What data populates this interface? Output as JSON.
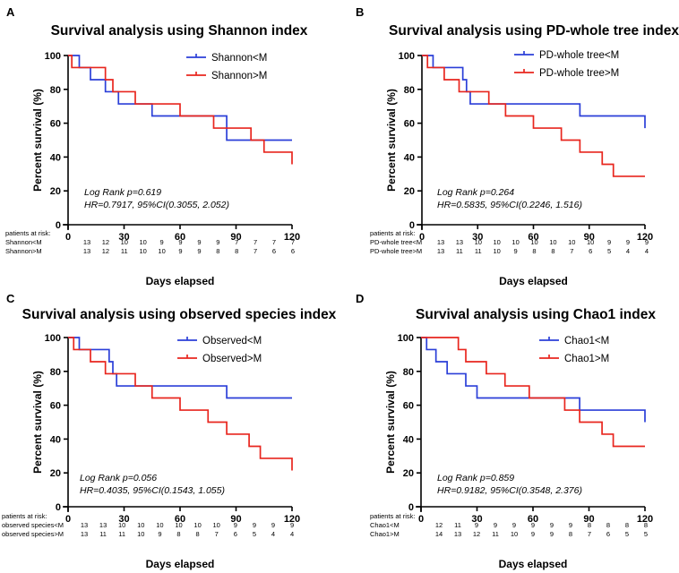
{
  "chart_data": [
    {
      "letter": "A",
      "type": "line",
      "subtype": "kaplan-meier-step",
      "title": "Survival analysis using Shannon index",
      "xlabel": "Days elapsed",
      "ylabel": "Percent survival (%)",
      "xlim": [
        0,
        120
      ],
      "ylim": [
        0,
        100
      ],
      "xticks": [
        "0",
        "30",
        "60",
        "90",
        "120"
      ],
      "yticks": [
        "0",
        "20",
        "40",
        "60",
        "80",
        "100"
      ],
      "legend_position": "top-right",
      "series": [
        {
          "name": "Shannon<M",
          "color": "#2b3fd8",
          "steps": [
            [
              0,
              100
            ],
            [
              6,
              92.9
            ],
            [
              12,
              85.7
            ],
            [
              20,
              78.6
            ],
            [
              27,
              71.4
            ],
            [
              45,
              64.3
            ],
            [
              85,
              50
            ],
            [
              120,
              50
            ]
          ]
        },
        {
          "name": "Shannon>M",
          "color": "#e8261e",
          "steps": [
            [
              0,
              100
            ],
            [
              2,
              92.9
            ],
            [
              20,
              85.7
            ],
            [
              24,
              78.6
            ],
            [
              36,
              71.4
            ],
            [
              60,
              64.3
            ],
            [
              78,
              57.1
            ],
            [
              90,
              57.1
            ],
            [
              98,
              50
            ],
            [
              105,
              42.9
            ],
            [
              120,
              35.7
            ]
          ]
        }
      ],
      "stats": {
        "logrank": "Log Rank p=0.619",
        "hr": "HR=0.7917, 95%CI(0.3055, 2.052)"
      },
      "risk_table": {
        "heading": "patients at risk:",
        "rows": [
          {
            "label": "Shannon<M",
            "counts": [
              "13",
              "12",
              "10",
              "10",
              "9",
              "9",
              "9",
              "9",
              "7",
              "7",
              "7",
              "7"
            ]
          },
          {
            "label": "Shannon>M",
            "counts": [
              "13",
              "12",
              "11",
              "10",
              "10",
              "9",
              "9",
              "8",
              "8",
              "7",
              "6",
              "6"
            ]
          }
        ]
      }
    },
    {
      "letter": "B",
      "type": "line",
      "subtype": "kaplan-meier-step",
      "title": "Survival analysis using PD-whole tree index",
      "xlabel": "Days elapsed",
      "ylabel": "Percent survival (%)",
      "xlim": [
        0,
        120
      ],
      "ylim": [
        0,
        100
      ],
      "xticks": [
        "0",
        "30",
        "60",
        "90",
        "120"
      ],
      "yticks": [
        "0",
        "20",
        "40",
        "60",
        "80",
        "100"
      ],
      "legend_position": "top-right",
      "series": [
        {
          "name": "PD-whole tree<M",
          "color": "#2b3fd8",
          "steps": [
            [
              0,
              100
            ],
            [
              6,
              92.9
            ],
            [
              22,
              85.7
            ],
            [
              24,
              78.6
            ],
            [
              26,
              71.4
            ],
            [
              85,
              64.3
            ],
            [
              119,
              64.3
            ],
            [
              120,
              57.1
            ]
          ]
        },
        {
          "name": "PD-whole tree>M",
          "color": "#e8261e",
          "steps": [
            [
              0,
              100
            ],
            [
              3,
              92.9
            ],
            [
              12,
              85.7
            ],
            [
              20,
              78.6
            ],
            [
              36,
              71.4
            ],
            [
              45,
              64.3
            ],
            [
              60,
              57.1
            ],
            [
              75,
              50
            ],
            [
              85,
              42.9
            ],
            [
              97,
              35.7
            ],
            [
              103,
              28.6
            ],
            [
              120,
              28.6
            ]
          ]
        }
      ],
      "stats": {
        "logrank": "Log Rank p=0.264",
        "hr": "HR=0.5835, 95%CI(0.2246, 1.516)"
      },
      "risk_table": {
        "heading": "patients at risk:",
        "rows": [
          {
            "label": "PD-whole tree<M",
            "counts": [
              "13",
              "13",
              "10",
              "10",
              "10",
              "10",
              "10",
              "10",
              "10",
              "9",
              "9",
              "9"
            ]
          },
          {
            "label": "PD-whole tree>M",
            "counts": [
              "13",
              "11",
              "11",
              "10",
              "9",
              "8",
              "8",
              "7",
              "6",
              "5",
              "4",
              "4"
            ]
          }
        ]
      }
    },
    {
      "letter": "C",
      "type": "line",
      "subtype": "kaplan-meier-step",
      "title": "Survival analysis using observed species index",
      "xlabel": "Days elapsed",
      "ylabel": "Percent survival (%)",
      "xlim": [
        0,
        120
      ],
      "ylim": [
        0,
        100
      ],
      "xticks": [
        "0",
        "30",
        "60",
        "90",
        "120"
      ],
      "yticks": [
        "0",
        "20",
        "40",
        "60",
        "80",
        "100"
      ],
      "legend_position": "top-right",
      "series": [
        {
          "name": "Observed<M",
          "color": "#2b3fd8",
          "steps": [
            [
              0,
              100
            ],
            [
              6,
              92.9
            ],
            [
              22,
              85.7
            ],
            [
              24,
              78.6
            ],
            [
              26,
              71.4
            ],
            [
              85,
              64.3
            ],
            [
              120,
              64.3
            ]
          ]
        },
        {
          "name": "Observed>M",
          "color": "#e8261e",
          "steps": [
            [
              0,
              100
            ],
            [
              3,
              92.9
            ],
            [
              12,
              85.7
            ],
            [
              20,
              78.6
            ],
            [
              36,
              71.4
            ],
            [
              45,
              64.3
            ],
            [
              60,
              57.1
            ],
            [
              75,
              50
            ],
            [
              85,
              42.9
            ],
            [
              97,
              35.7
            ],
            [
              103,
              28.6
            ],
            [
              119,
              28.6
            ],
            [
              120,
              21.4
            ]
          ]
        }
      ],
      "stats": {
        "logrank": "Log Rank p=0.056",
        "hr": "HR=0.4035, 95%CI(0.1543, 1.055)"
      },
      "risk_table": {
        "heading": "patients at risk:",
        "rows": [
          {
            "label": "observed species<M",
            "counts": [
              "13",
              "13",
              "10",
              "10",
              "10",
              "10",
              "10",
              "10",
              "9",
              "9",
              "9",
              "9"
            ]
          },
          {
            "label": "observed species>M",
            "counts": [
              "13",
              "11",
              "11",
              "10",
              "9",
              "8",
              "8",
              "7",
              "6",
              "5",
              "4",
              "4"
            ]
          }
        ]
      }
    },
    {
      "letter": "D",
      "type": "line",
      "subtype": "kaplan-meier-step",
      "title": "Survival analysis using Chao1 index",
      "xlabel": "Days elapsed",
      "ylabel": "Percent survival (%)",
      "xlim": [
        0,
        120
      ],
      "ylim": [
        0,
        100
      ],
      "xticks": [
        "0",
        "30",
        "60",
        "90",
        "120"
      ],
      "yticks": [
        "0",
        "20",
        "40",
        "60",
        "80",
        "100"
      ],
      "legend_position": "top-right",
      "series": [
        {
          "name": "Chao1<M",
          "color": "#2b3fd8",
          "steps": [
            [
              0,
              100
            ],
            [
              3,
              92.9
            ],
            [
              8,
              85.7
            ],
            [
              14,
              78.6
            ],
            [
              24,
              71.4
            ],
            [
              30,
              64.3
            ],
            [
              85,
              57.1
            ],
            [
              119,
              57.1
            ],
            [
              120,
              50
            ]
          ]
        },
        {
          "name": "Chao1>M",
          "color": "#e8261e",
          "steps": [
            [
              0,
              100
            ],
            [
              20,
              92.9
            ],
            [
              24,
              85.7
            ],
            [
              35,
              78.6
            ],
            [
              45,
              71.4
            ],
            [
              58,
              64.3
            ],
            [
              77,
              57.1
            ],
            [
              85,
              50
            ],
            [
              97,
              42.9
            ],
            [
              103,
              35.7
            ],
            [
              120,
              35.7
            ]
          ]
        }
      ],
      "stats": {
        "logrank": "Log Rank p=0.859",
        "hr": "HR=0.9182, 95%CI(0.3548, 2.376)"
      },
      "risk_table": {
        "heading": "patients at risk:",
        "rows": [
          {
            "label": "Chao1<M",
            "counts": [
              "12",
              "11",
              "9",
              "9",
              "9",
              "9",
              "9",
              "9",
              "8",
              "8",
              "8",
              "8"
            ]
          },
          {
            "label": "Chao1>M",
            "counts": [
              "14",
              "13",
              "12",
              "11",
              "10",
              "9",
              "9",
              "8",
              "7",
              "6",
              "5",
              "5"
            ]
          }
        ]
      }
    }
  ]
}
